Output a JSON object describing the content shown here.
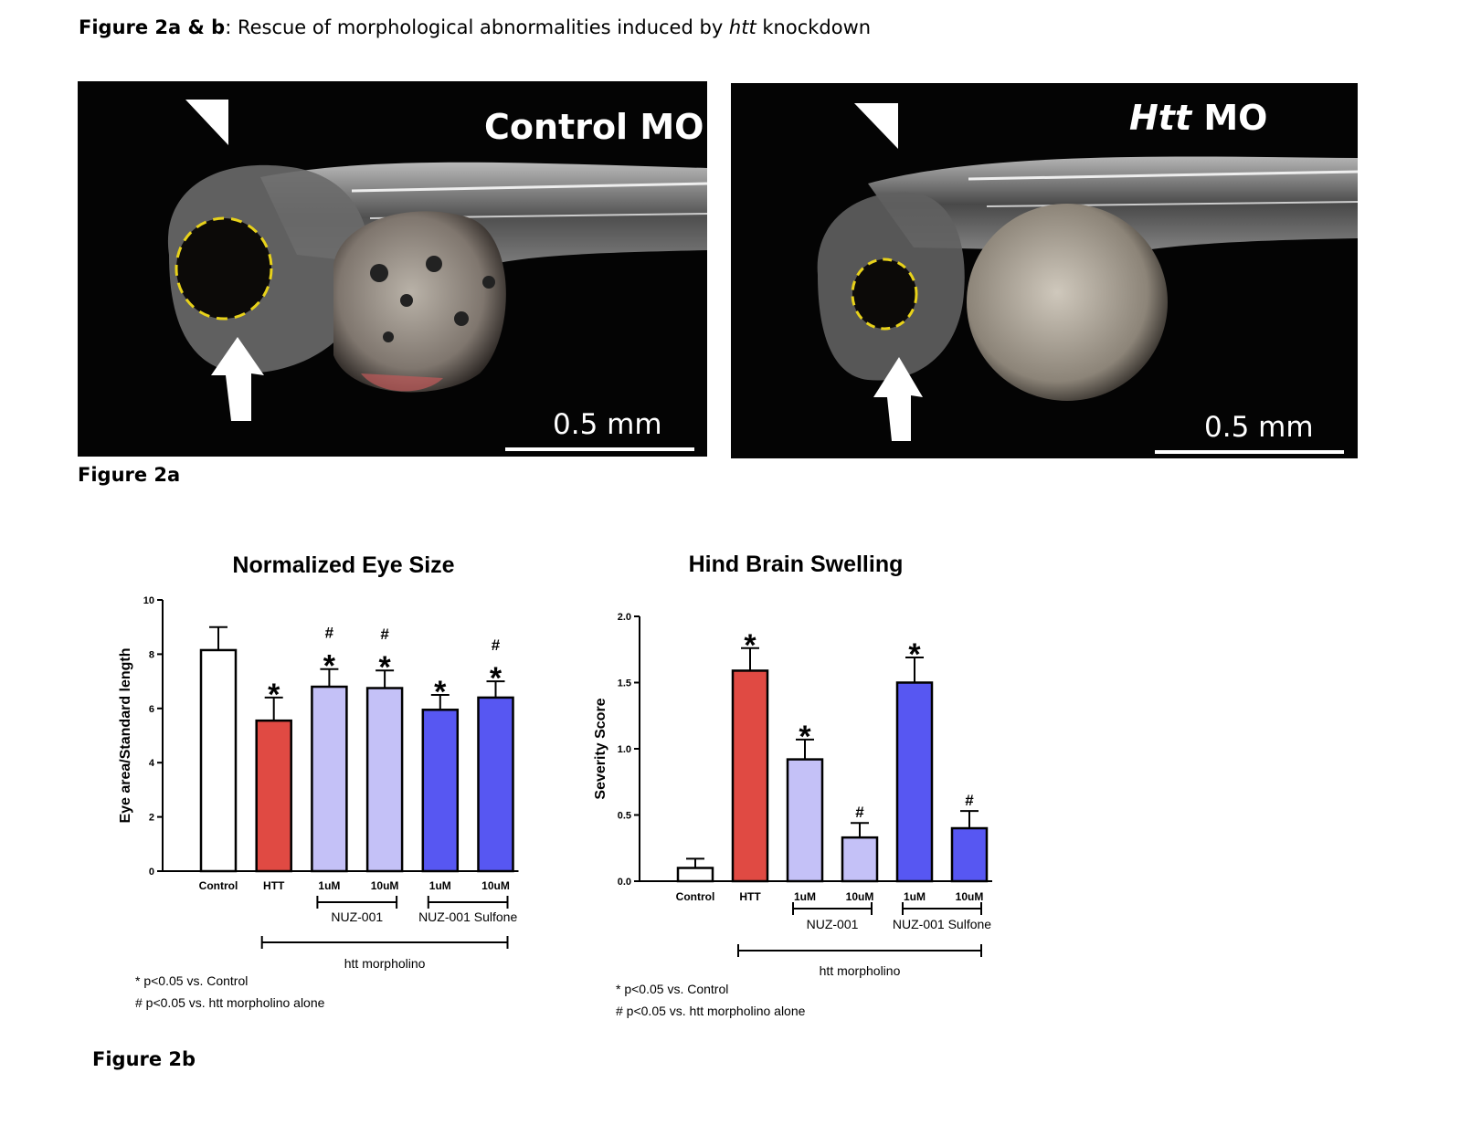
{
  "caption": {
    "bold": "Figure 2a & b",
    "text_before_italic": ": Rescue of morphological abnormalities induced by ",
    "italic": "htt",
    "text_after_italic": " knockdown"
  },
  "figure_2a": {
    "label": "Figure 2a",
    "panels": [
      {
        "title_italic": "",
        "title": "Control MO",
        "scale": "0.5 mm"
      },
      {
        "title_italic": "Htt",
        "title": " MO",
        "scale": "0.5 mm"
      }
    ]
  },
  "figure_2b": {
    "label": "Figure 2b"
  },
  "colors": {
    "control": "#ffffff",
    "htt": "#e04a43",
    "nuz": "#c4c1f7",
    "sulfone": "#5757f2",
    "outline": "#000000",
    "eye_outline": "#e8d21a"
  },
  "chart_data": [
    {
      "type": "bar",
      "title": "Normalized Eye Size",
      "ylabel": "Eye area/Standard length",
      "ylim": [
        0,
        10
      ],
      "yticks": [
        "0",
        "2",
        "4",
        "6",
        "8",
        "10"
      ],
      "categories": [
        "Control",
        "HTT",
        "1uM",
        "10uM",
        "1uM",
        "10uM"
      ],
      "values": [
        8.15,
        5.55,
        6.8,
        6.75,
        5.95,
        6.4
      ],
      "errors": [
        0.85,
        0.85,
        0.65,
        0.65,
        0.55,
        0.6
      ],
      "bar_colors": [
        "control",
        "htt",
        "nuz",
        "nuz",
        "sulfone",
        "sulfone"
      ],
      "stars": [
        "",
        "*",
        "*",
        "*",
        "*",
        "*"
      ],
      "hashes": [
        "",
        "",
        "#",
        "#",
        "",
        "#"
      ],
      "groups": [
        {
          "label": "NUZ-001",
          "from": 2,
          "to": 3
        },
        {
          "label": "NUZ-001 Sulfone",
          "from": 4,
          "to": 5
        }
      ],
      "outer_group": {
        "label": "htt morpholino",
        "from": 1,
        "to": 5
      },
      "notes": [
        "* p<0.05 vs. Control",
        "# p<0.05 vs. htt morpholino alone"
      ]
    },
    {
      "type": "bar",
      "title": "Hind Brain Swelling",
      "ylabel": "Severity Score",
      "ylim": [
        0,
        2.0
      ],
      "yticks": [
        "0.0",
        "0.5",
        "1.0",
        "1.5",
        "2.0"
      ],
      "categories": [
        "Control",
        "HTT",
        "1uM",
        "10uM",
        "1uM",
        "10uM"
      ],
      "values": [
        0.1,
        1.59,
        0.92,
        0.33,
        1.5,
        0.4
      ],
      "errors": [
        0.07,
        0.17,
        0.15,
        0.11,
        0.19,
        0.13
      ],
      "bar_colors": [
        "control",
        "htt",
        "nuz",
        "nuz",
        "sulfone",
        "sulfone"
      ],
      "stars": [
        "",
        "*",
        "*",
        "",
        "*",
        ""
      ],
      "hashes": [
        "",
        "",
        "",
        "#",
        "",
        "#"
      ],
      "groups": [
        {
          "label": "NUZ-001",
          "from": 2,
          "to": 3
        },
        {
          "label": "NUZ-001 Sulfone",
          "from": 4,
          "to": 5
        }
      ],
      "outer_group": {
        "label": "htt morpholino",
        "from": 1,
        "to": 5
      },
      "notes": [
        "* p<0.05 vs. Control",
        "# p<0.05 vs. htt morpholino alone"
      ]
    }
  ]
}
